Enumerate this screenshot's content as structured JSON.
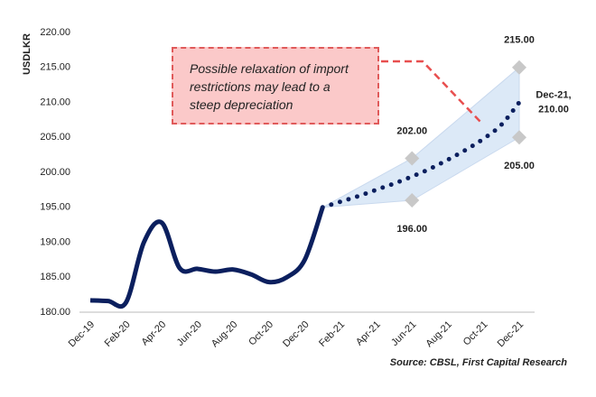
{
  "chart_data": {
    "type": "line",
    "y_label": "USDLKR",
    "annotation": "Possible relaxation of import restrictions may lead to a steep depreciation",
    "source": "Source: CBSL, First Capital Research",
    "categories": [
      "Dec-19",
      null,
      "Feb-20",
      null,
      "Apr-20",
      null,
      "Jun-20",
      null,
      "Aug-20",
      null,
      "Oct-20",
      null,
      "Dec-20",
      null,
      "Feb-21",
      null,
      "Apr-21",
      null,
      "Jun-21",
      null,
      "Aug-21",
      null,
      "Oct-21",
      null,
      "Dec-21"
    ],
    "ylim": [
      180,
      220
    ],
    "yticks": [
      {
        "value": 180,
        "label": "180.00"
      },
      {
        "value": 185,
        "label": "185.00"
      },
      {
        "value": 190,
        "label": "190.00"
      },
      {
        "value": 195,
        "label": "195.00"
      },
      {
        "value": 200,
        "label": "200.00"
      },
      {
        "value": 205,
        "label": "205.00"
      },
      {
        "value": 210,
        "label": "210.00"
      },
      {
        "value": 215,
        "label": "215.00"
      },
      {
        "value": 220,
        "label": "220.00"
      }
    ],
    "grid": false,
    "series": [
      {
        "color": "#0b1f5e",
        "style": "solid",
        "values": [
          181.7,
          181.6,
          181.4,
          190.0,
          192.8,
          186.3,
          186.2,
          185.8,
          186.1,
          185.4,
          184.3,
          185.0,
          187.5,
          195.0,
          null,
          null,
          null,
          null,
          null,
          null,
          null,
          null,
          null,
          null,
          null
        ]
      },
      {
        "color": "#0b1f5e",
        "style": "dotted",
        "values": [
          null,
          null,
          null,
          null,
          null,
          null,
          null,
          null,
          null,
          null,
          null,
          null,
          null,
          195.0,
          195.8,
          196.6,
          197.5,
          198.4,
          199.4,
          200.5,
          201.8,
          203.2,
          204.8,
          206.8,
          210
        ],
        "value_labels": [
          null,
          null,
          null,
          null,
          null,
          null,
          null,
          null,
          null,
          null,
          null,
          null,
          null,
          null,
          null,
          null,
          null,
          null,
          null,
          null,
          null,
          null,
          null,
          null,
          "210.00"
        ],
        "end_label": "Dec-21,"
      }
    ],
    "band": {
      "color": "#dce9f7",
      "marker_color": "#c8c8c8",
      "upper": [
        null,
        null,
        null,
        null,
        null,
        null,
        null,
        null,
        null,
        null,
        null,
        null,
        null,
        195,
        196.4,
        197.8,
        199.2,
        200.6,
        202,
        204.17,
        206.33,
        208.5,
        210.67,
        212.83,
        215
      ],
      "lower": [
        null,
        null,
        null,
        null,
        null,
        null,
        null,
        null,
        null,
        null,
        null,
        null,
        null,
        195,
        195.2,
        195.4,
        195.6,
        195.8,
        196,
        197.5,
        199,
        200.5,
        202,
        203.5,
        205
      ],
      "upper_labels": [
        null,
        null,
        null,
        null,
        null,
        null,
        null,
        null,
        null,
        null,
        null,
        null,
        null,
        null,
        null,
        null,
        null,
        null,
        "202.00",
        null,
        null,
        null,
        null,
        null,
        "215.00"
      ],
      "lower_labels": [
        null,
        null,
        null,
        null,
        null,
        null,
        null,
        null,
        null,
        null,
        null,
        null,
        null,
        null,
        null,
        null,
        null,
        null,
        "196.00",
        null,
        null,
        null,
        null,
        null,
        "205.00"
      ]
    }
  }
}
